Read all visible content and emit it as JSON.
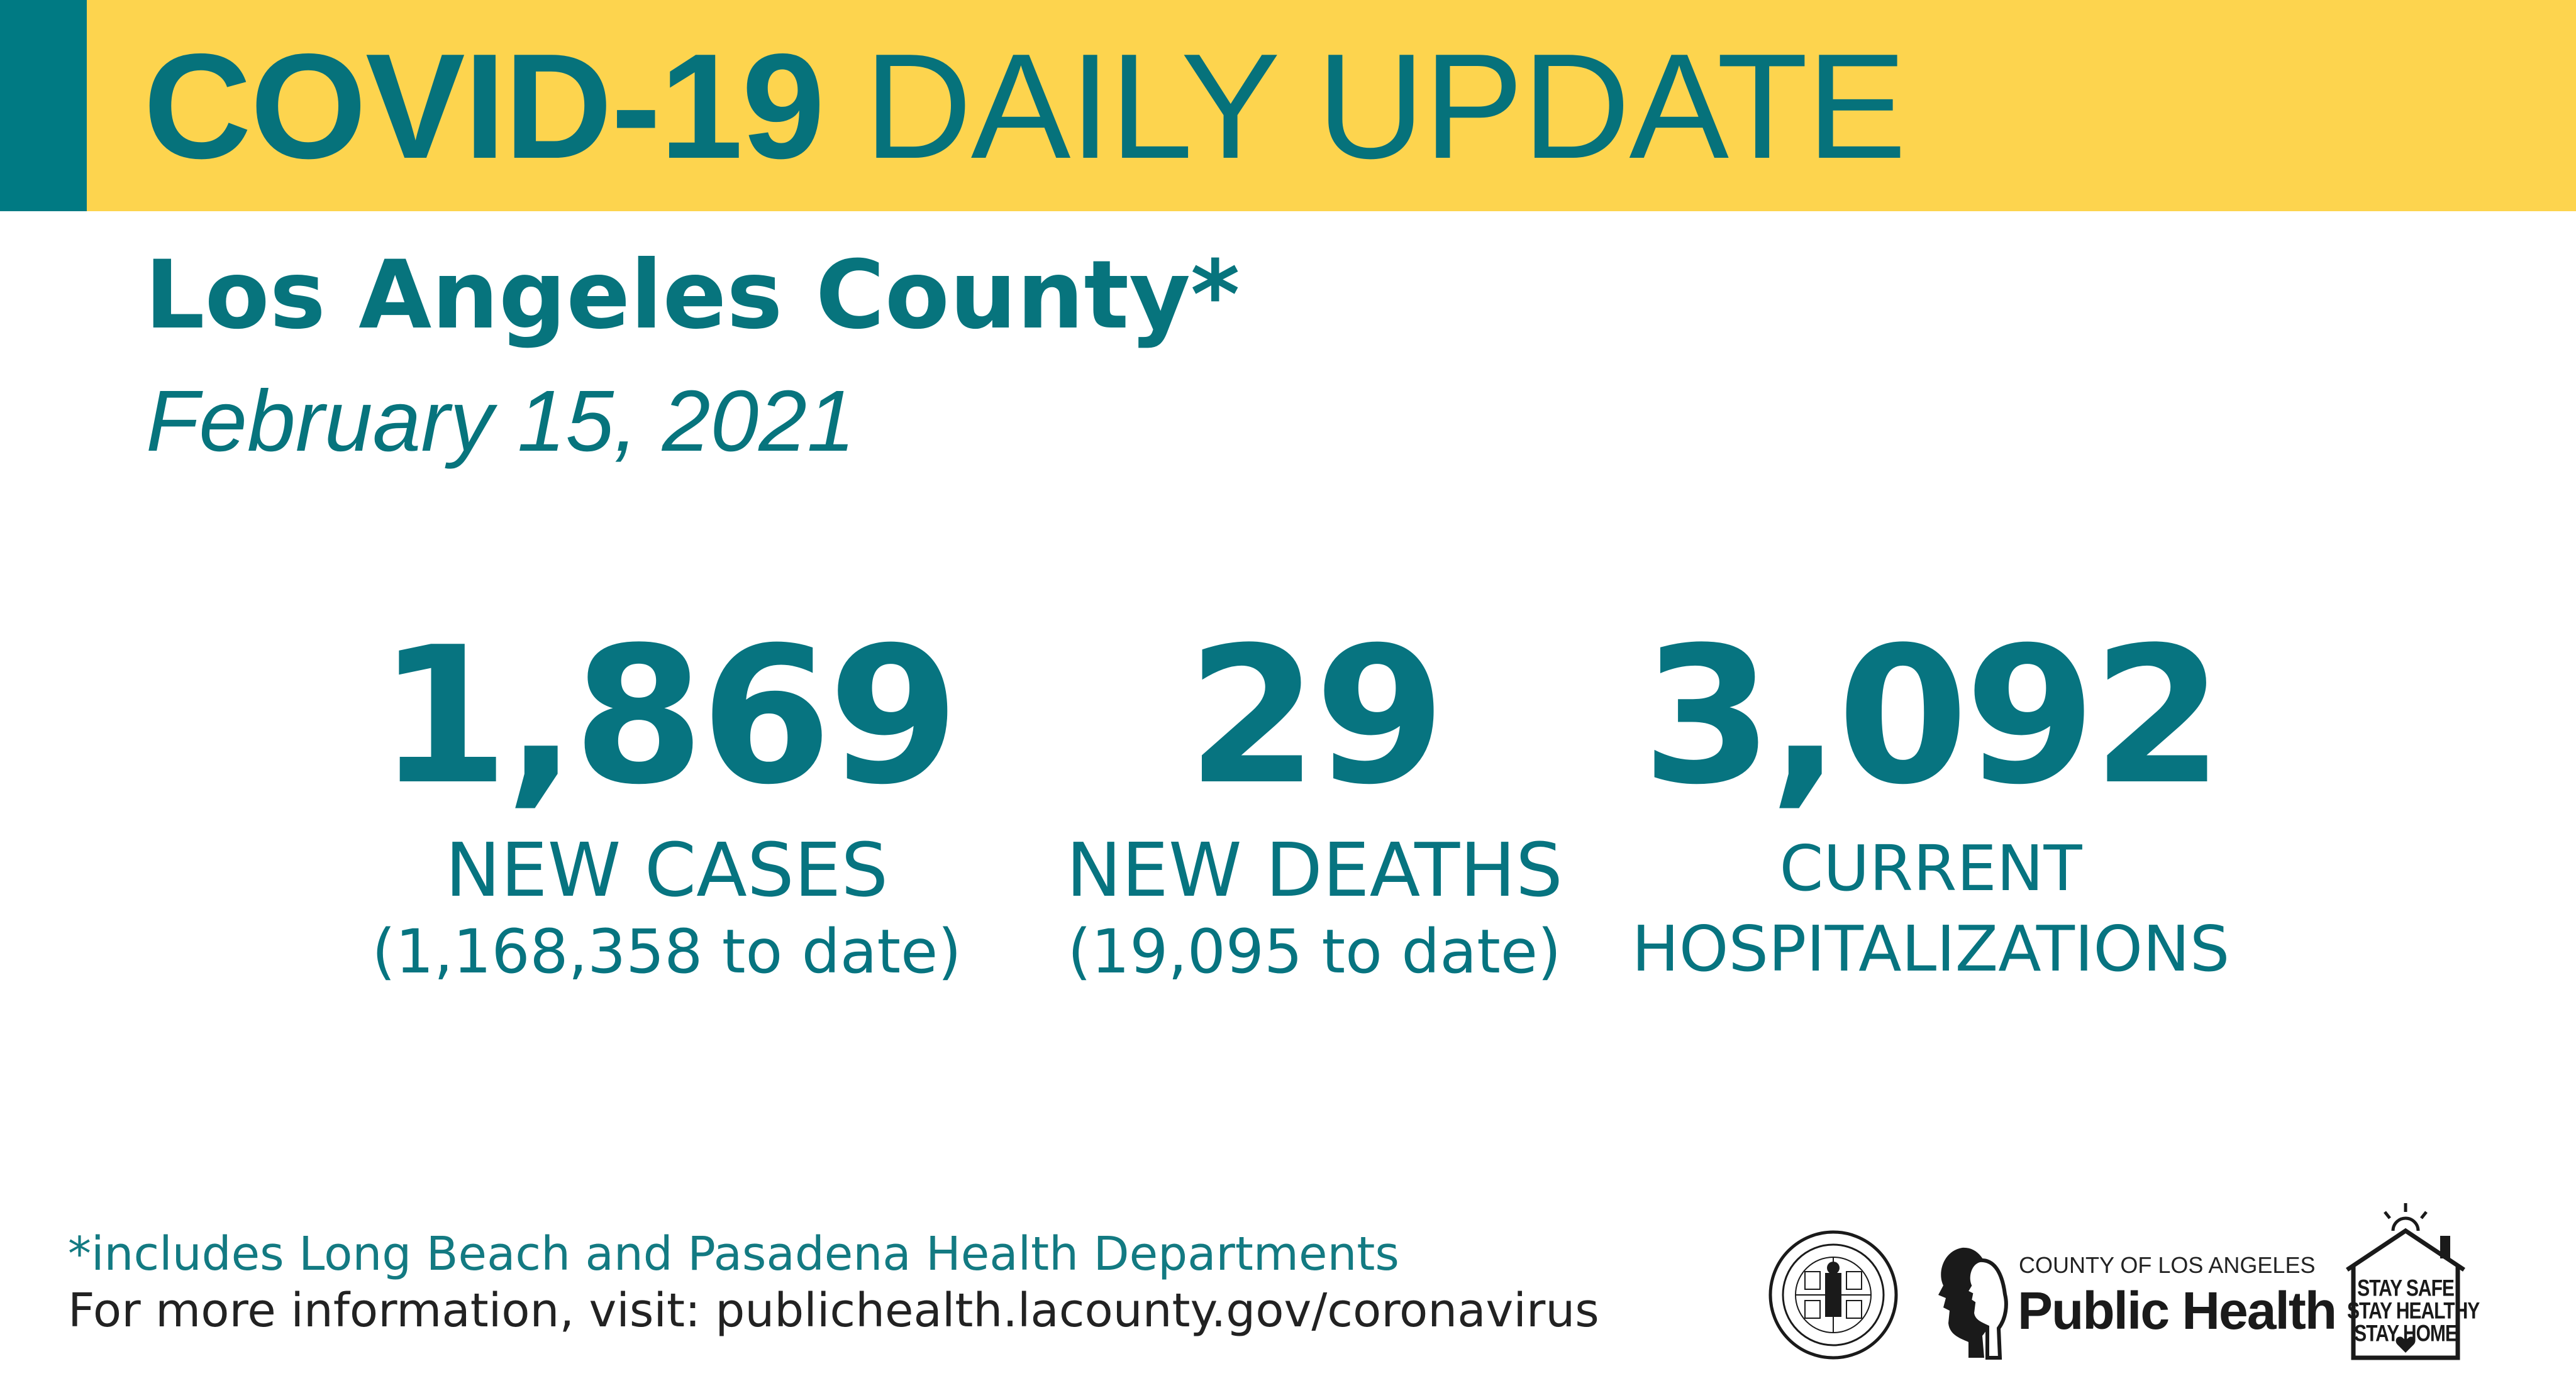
{
  "banner": {
    "title_bold": "COVID-19",
    "title_light": "DAILY UPDATE"
  },
  "location": "Los Angeles County*",
  "date": "February 15, 2021",
  "stats": {
    "cases": {
      "value": "1,869",
      "label": "NEW CASES",
      "to_date": "(1,168,358 to date)"
    },
    "deaths": {
      "value": "29",
      "label": "NEW DEATHS",
      "to_date": "(19,095 to date)"
    },
    "hospitalizations": {
      "value": "3,092",
      "label_line1": "CURRENT",
      "label_line2": "HOSPITALIZATIONS"
    }
  },
  "footer": {
    "footnote": "*includes Long Beach and Pasadena Health Departments",
    "info": "For more information, visit: publichealth.lacounty.gov/coronavirus"
  },
  "logos": {
    "public_health_small": "COUNTY OF LOS ANGELES",
    "public_health_big": "Public Health",
    "stay_safe_line1": "STAY SAFE",
    "stay_safe_line2": "STAY HEALTHY",
    "stay_safe_line3": "STAY HOME"
  },
  "colors": {
    "banner_yellow": "#fdd44e",
    "teal": "#007a83",
    "text_teal": "#07747d"
  }
}
